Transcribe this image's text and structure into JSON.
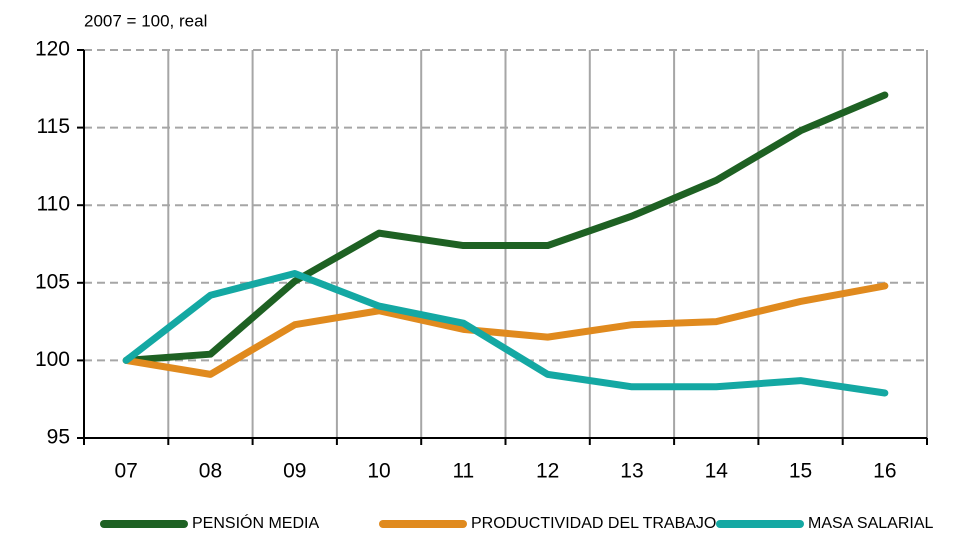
{
  "chart_data": {
    "type": "line",
    "subtitle": "2007 = 100, real",
    "categories": [
      "07",
      "08",
      "09",
      "10",
      "11",
      "12",
      "13",
      "14",
      "15",
      "16"
    ],
    "series": [
      {
        "name": "PENSIÓN MEDIA",
        "color": "#1e6123",
        "values": [
          100,
          100.4,
          105.1,
          108.2,
          107.4,
          107.4,
          109.3,
          111.6,
          114.8,
          117.1
        ]
      },
      {
        "name": "PRODUCTIVIDAD DEL TRABAJO",
        "color": "#e08a1e",
        "values": [
          100,
          99.1,
          102.3,
          103.2,
          102.0,
          101.5,
          102.3,
          102.5,
          103.8,
          104.8
        ]
      },
      {
        "name": "MASA SALARIAL",
        "color": "#14a8a3",
        "values": [
          100,
          104.2,
          105.6,
          103.5,
          102.4,
          99.1,
          98.3,
          98.3,
          98.7,
          97.9
        ]
      }
    ],
    "ylim": [
      95,
      120
    ],
    "yticks": [
      95,
      100,
      105,
      110,
      115,
      120
    ],
    "grid": true,
    "legend": "bottom"
  }
}
